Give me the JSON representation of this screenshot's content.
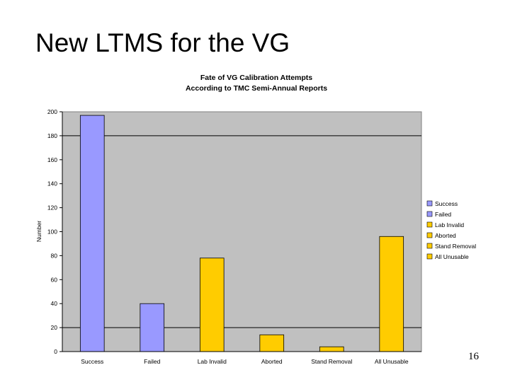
{
  "slide": {
    "title": "New LTMS for the VG",
    "page_number": "16"
  },
  "chart_data": {
    "type": "bar",
    "title": "Fate of VG Calibration Attempts",
    "subtitle": "According to TMC Semi-Annual Reports",
    "ylabel": "Number",
    "xlabel": "",
    "ylim": [
      0,
      200
    ],
    "yticks": [
      0,
      20,
      40,
      60,
      80,
      100,
      120,
      140,
      160,
      180,
      200
    ],
    "grid_lines_at": [
      20,
      180
    ],
    "categories": [
      "Success",
      "Failed",
      "Lab Invalid",
      "Aborted",
      "Stand Removal",
      "All Unusable"
    ],
    "values": [
      197,
      40,
      78,
      14,
      4,
      96
    ],
    "colors": [
      "#9999ff",
      "#9999ff",
      "#ffcc00",
      "#ffcc00",
      "#ffcc00",
      "#ffcc00"
    ],
    "plot_background": "#c0c0c0",
    "legend": {
      "placement": "right",
      "entries": [
        {
          "label": "Success",
          "color": "#9999ff"
        },
        {
          "label": "Failed",
          "color": "#9999ff"
        },
        {
          "label": "Lab Invalid",
          "color": "#ffcc00"
        },
        {
          "label": "Aborted",
          "color": "#ffcc00"
        },
        {
          "label": "Stand Removal",
          "color": "#ffcc00"
        },
        {
          "label": "All Unusable",
          "color": "#ffcc00"
        }
      ]
    }
  }
}
